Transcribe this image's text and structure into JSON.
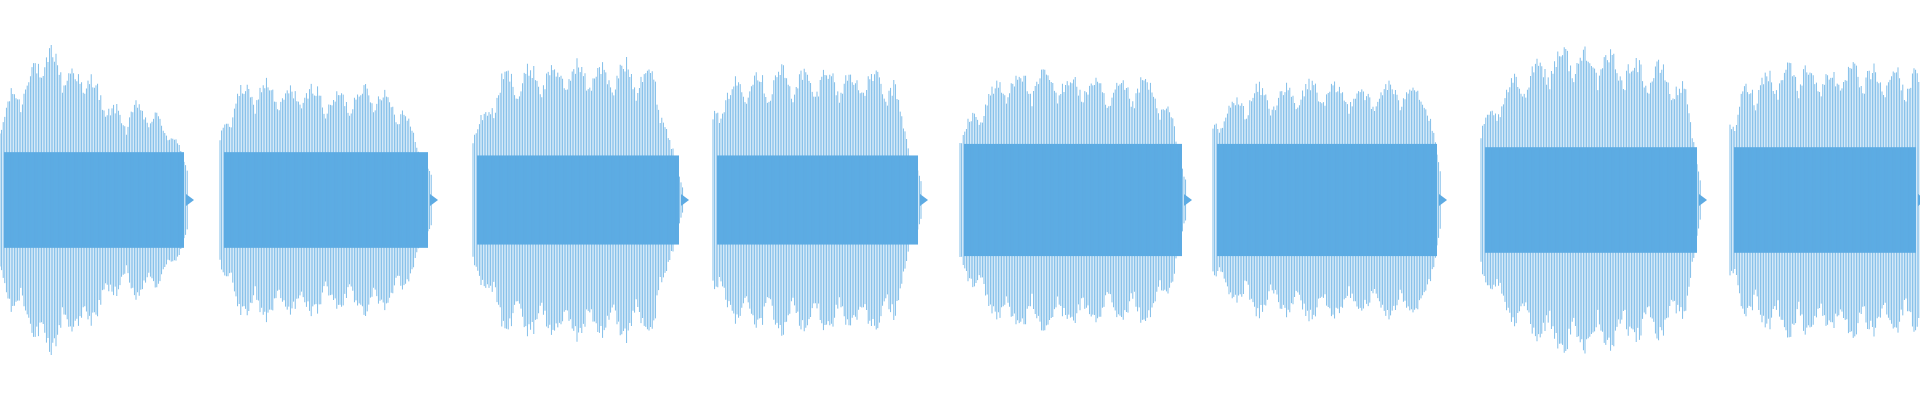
{
  "waveform": {
    "wave_color": "#5dabe3",
    "background_color": "#ffffff",
    "segments": [
      {
        "peaks": [
          0.52,
          0.7,
          0.78,
          0.92,
          0.97,
          0.9,
          0.82,
          0.84,
          0.7,
          0.6,
          0.55,
          0.62,
          0.58,
          0.5,
          0.42,
          0.2
        ],
        "body": 0.29
      },
      {
        "peaks": [
          0.4,
          0.68,
          0.73,
          0.76,
          0.72,
          0.7,
          0.74,
          0.71,
          0.66,
          0.7,
          0.72,
          0.74,
          0.66,
          0.61,
          0.35,
          0.15
        ],
        "body": 0.29
      },
      {
        "peaks": [
          0.45,
          0.58,
          0.8,
          0.82,
          0.84,
          0.86,
          0.85,
          0.87,
          0.87,
          0.86,
          0.84,
          0.88,
          0.86,
          0.82,
          0.4,
          0.1
        ],
        "body": 0.27
      },
      {
        "peaks": [
          0.55,
          0.7,
          0.8,
          0.82,
          0.8,
          0.84,
          0.82,
          0.8,
          0.84,
          0.82,
          0.8,
          0.82,
          0.8,
          0.75,
          0.4,
          0.1
        ],
        "body": 0.27
      },
      {
        "peaks": [
          0.4,
          0.58,
          0.7,
          0.8,
          0.82,
          0.8,
          0.82,
          0.78,
          0.8,
          0.76,
          0.72,
          0.74,
          0.78,
          0.72,
          0.55,
          0.15
        ],
        "body": 0.34
      },
      {
        "peaks": [
          0.5,
          0.6,
          0.68,
          0.72,
          0.7,
          0.72,
          0.74,
          0.76,
          0.72,
          0.74,
          0.7,
          0.72,
          0.76,
          0.74,
          0.72,
          0.15
        ],
        "body": 0.34
      },
      {
        "peaks": [
          0.45,
          0.62,
          0.75,
          0.84,
          0.9,
          0.95,
          0.98,
          0.96,
          0.94,
          0.92,
          0.9,
          0.88,
          0.86,
          0.82,
          0.7,
          0.12
        ],
        "body": 0.32
      },
      {
        "peaks": [
          0.5,
          0.7,
          0.78,
          0.82,
          0.85,
          0.88,
          0.86,
          0.84,
          0.82,
          0.84,
          0.86,
          0.84,
          0.82,
          0.84,
          0.82,
          0.8
        ],
        "body": 0.32
      }
    ]
  }
}
